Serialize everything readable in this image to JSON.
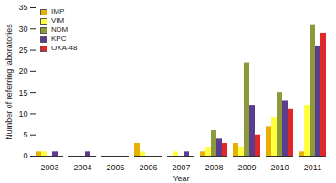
{
  "chart_data": {
    "type": "bar",
    "xlabel": "Year",
    "ylabel": "Number of referring laboratories",
    "categories": [
      "2003",
      "2004",
      "2005",
      "2006",
      "2007",
      "2008",
      "2009",
      "2010",
      "2011"
    ],
    "series": [
      {
        "name": "IMP",
        "color": "#e8b000",
        "values": [
          1,
          0,
          0,
          3,
          0,
          1,
          3,
          7,
          1
        ]
      },
      {
        "name": "VIM",
        "color": "#ffff40",
        "values": [
          1,
          0,
          0,
          1,
          1,
          2,
          2,
          9,
          12
        ]
      },
      {
        "name": "NDM",
        "color": "#8c9a3c",
        "values": [
          0,
          0,
          0,
          0,
          0,
          6,
          22,
          15,
          31
        ]
      },
      {
        "name": "KPC",
        "color": "#5a3d8c",
        "values": [
          1,
          1,
          0,
          0,
          1,
          4,
          12,
          13,
          26
        ]
      },
      {
        "name": "OXA-48",
        "color": "#e0282a",
        "values": [
          0,
          0,
          0,
          0,
          0,
          3,
          5,
          11,
          29
        ]
      }
    ],
    "ylim": [
      0,
      35
    ],
    "yticks": [
      0,
      5,
      10,
      15,
      20,
      25,
      30,
      35
    ],
    "grid": false,
    "legend": "top-left"
  }
}
